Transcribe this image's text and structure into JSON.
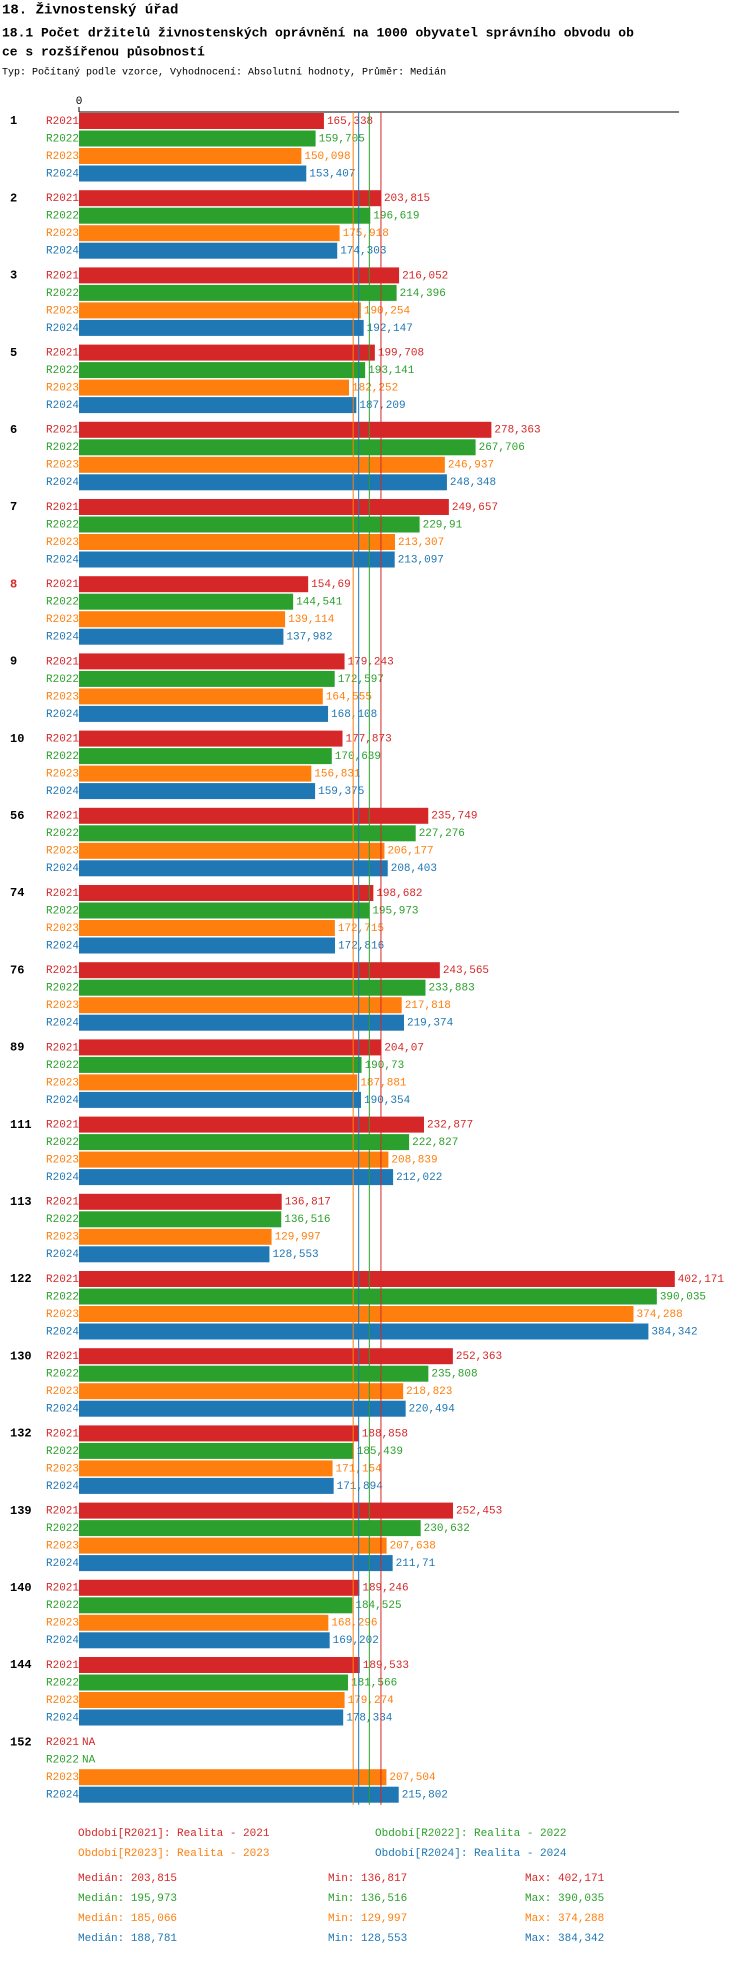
{
  "chart_data": {
    "type": "bar",
    "orientation": "horizontal",
    "title": "18. Živnostenský úřad",
    "subtitle_lines": [
      "18.1 Počet držitelů živnostenských oprávnění na 1000 obyvatel správního obvodu ob",
      "ce s rozšířenou působností"
    ],
    "note": "Typ: Počítaný podle vzorce, Vyhodnocení: Absolutní hodnoty, Průměr: Medián",
    "categories": [
      "1",
      "2",
      "3",
      "5",
      "6",
      "7",
      "8",
      "9",
      "10",
      "56",
      "74",
      "76",
      "89",
      "111",
      "113",
      "122",
      "130",
      "132",
      "139",
      "140",
      "144",
      "152"
    ],
    "highlight": {
      "category_index": 6,
      "color": "#d62728"
    },
    "xlim": [
      0,
      405
    ],
    "xticks": [
      0
    ],
    "stats_labels": {
      "median": "Medián:",
      "min": "Min:",
      "max": "Max:"
    },
    "series": [
      {
        "name": "R2021",
        "color": "#d62728",
        "legend_label": "Období[R2021]: Realita - 2021",
        "values": [
          165.338,
          203.815,
          216.052,
          199.708,
          278.363,
          249.657,
          154.69,
          179.243,
          177.873,
          235.749,
          198.682,
          243.565,
          204.07,
          232.877,
          136.817,
          402.171,
          252.363,
          188.858,
          252.453,
          189.246,
          189.533,
          null
        ],
        "value_labels": [
          "165,338",
          "203,815",
          "216,052",
          "199,708",
          "278,363",
          "249,657",
          "154,69",
          "179,243",
          "177,873",
          "235,749",
          "198,682",
          "243,565",
          "204,07",
          "232,877",
          "136,817",
          "402,171",
          "252,363",
          "188,858",
          "252,453",
          "189,246",
          "189,533",
          "NA"
        ],
        "median": {
          "value": 203.815,
          "label": "203,815"
        },
        "min": {
          "value": 136.817,
          "label": "136,817"
        },
        "max": {
          "value": 402.171,
          "label": "402,171"
        }
      },
      {
        "name": "R2022",
        "color": "#2ca02c",
        "legend_label": "Období[R2022]: Realita - 2022",
        "values": [
          159.705,
          196.619,
          214.396,
          193.141,
          267.706,
          229.91,
          144.541,
          172.597,
          170.639,
          227.276,
          195.973,
          233.883,
          190.73,
          222.827,
          136.516,
          390.035,
          235.808,
          185.439,
          230.632,
          184.525,
          181.566,
          null
        ],
        "value_labels": [
          "159,705",
          "196,619",
          "214,396",
          "193,141",
          "267,706",
          "229,91",
          "144,541",
          "172,597",
          "170,639",
          "227,276",
          "195,973",
          "233,883",
          "190,73",
          "222,827",
          "136,516",
          "390,035",
          "235,808",
          "185,439",
          "230,632",
          "184,525",
          "181,566",
          "NA"
        ],
        "median": {
          "value": 195.973,
          "label": "195,973"
        },
        "min": {
          "value": 136.516,
          "label": "136,516"
        },
        "max": {
          "value": 390.035,
          "label": "390,035"
        }
      },
      {
        "name": "R2023",
        "color": "#ff7f0e",
        "legend_label": "Období[R2023]: Realita - 2023",
        "values": [
          150.098,
          175.918,
          190.254,
          182.252,
          246.937,
          213.307,
          139.114,
          164.555,
          156.831,
          206.177,
          172.715,
          217.818,
          187.881,
          208.839,
          129.997,
          374.288,
          218.823,
          171.154,
          207.638,
          168.296,
          179.274,
          207.504
        ],
        "value_labels": [
          "150,098",
          "175,918",
          "190,254",
          "182,252",
          "246,937",
          "213,307",
          "139,114",
          "164,555",
          "156,831",
          "206,177",
          "172,715",
          "217,818",
          "187,881",
          "208,839",
          "129,997",
          "374,288",
          "218,823",
          "171,154",
          "207,638",
          "168,296",
          "179,274",
          "207,504"
        ],
        "median": {
          "value": 185.066,
          "label": "185,066"
        },
        "min": {
          "value": 129.997,
          "label": "129,997"
        },
        "max": {
          "value": 374.288,
          "label": "374,288"
        }
      },
      {
        "name": "R2024",
        "color": "#1f77b4",
        "legend_label": "Období[R2024]: Realita - 2024",
        "values": [
          153.407,
          174.303,
          192.147,
          187.209,
          248.348,
          213.097,
          137.982,
          168.108,
          159.375,
          208.403,
          172.816,
          219.374,
          190.354,
          212.022,
          128.553,
          384.342,
          220.494,
          171.894,
          211.71,
          169.202,
          178.334,
          215.802
        ],
        "value_labels": [
          "153,407",
          "174,303",
          "192,147",
          "187,209",
          "248,348",
          "213,097",
          "137,982",
          "168,108",
          "159,375",
          "208,403",
          "172,816",
          "219,374",
          "190,354",
          "212,022",
          "128,553",
          "384,342",
          "220,494",
          "171,894",
          "211,71",
          "169,202",
          "178,334",
          "215,802"
        ],
        "median": {
          "value": 188.781,
          "label": "188,781"
        },
        "min": {
          "value": 128.553,
          "label": "128,553"
        },
        "max": {
          "value": 384.342,
          "label": "384,342"
        }
      }
    ]
  }
}
